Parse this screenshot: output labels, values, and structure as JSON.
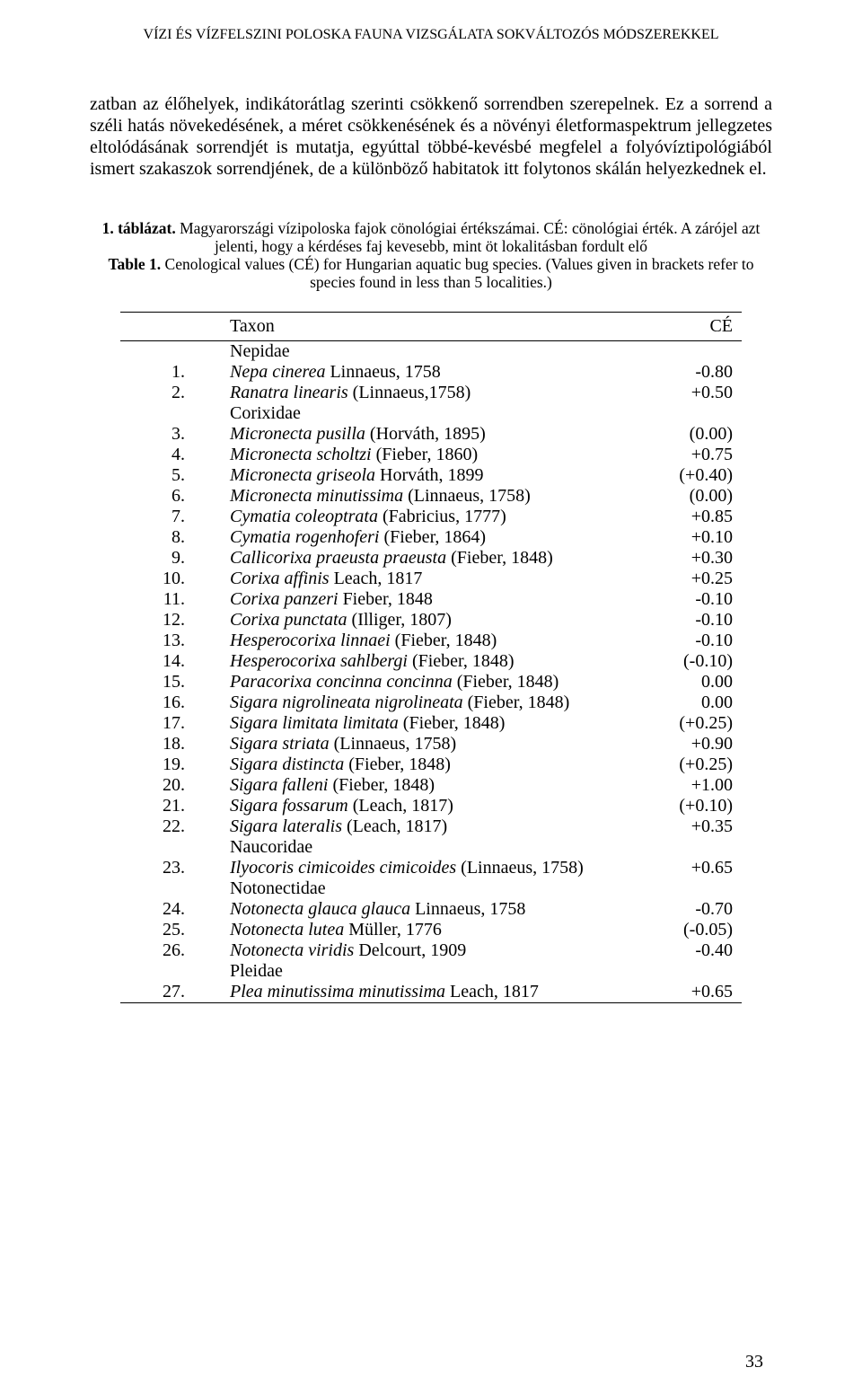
{
  "header": "VÍZI ÉS VÍZFELSZINI POLOSKA FAUNA VIZSGÁLATA SOKVÁLTOZÓS MÓDSZEREKKEL",
  "paragraph": "zatban az élőhelyek, indikátorátlag szerinti csökkenő sorrendben szerepelnek. Ez a sorrend a széli hatás növekedésének, a méret csökkenésének és a növényi életformaspektrum jellegzetes eltolódásának sorrendjét is mutatja, egyúttal többé-kevésbé megfelel a folyóvíztipológiából ismert szakaszok sorrendjének, de a különböző habitatok itt folytonos skálán helyezkednek el.",
  "caption_hu_bold": "1. táblázat.",
  "caption_hu_rest": " Magyarországi vízipoloska fajok cönológiai értékszámai. CÉ: cönológiai érték. A zárójel azt jelenti, hogy a kérdéses faj kevesebb, mint öt lokalitásban fordult elő",
  "caption_en_bold": "Table 1.",
  "caption_en_rest": " Cenological values (CÉ) for Hungarian aquatic bug species. (Values given in brackets refer to species found in less than 5 localities.)",
  "col_taxon": "Taxon",
  "col_ce": "CÉ",
  "rows": [
    {
      "num": "",
      "taxon": "Nepidae",
      "ce": "",
      "family": true
    },
    {
      "num": "1.",
      "taxon_i": "Nepa cinerea",
      "taxon_r": " Linnaeus, 1758",
      "ce": "-0.80"
    },
    {
      "num": "2.",
      "taxon_i": "Ranatra linearis",
      "taxon_r": " (Linnaeus,1758)",
      "ce": "+0.50"
    },
    {
      "num": "",
      "taxon": "Corixidae",
      "ce": "",
      "family": true
    },
    {
      "num": "3.",
      "taxon_i": "Micronecta pusilla",
      "taxon_r": " (Horváth, 1895)",
      "ce": "(0.00)"
    },
    {
      "num": "4.",
      "taxon_i": "Micronecta scholtzi",
      "taxon_r": " (Fieber, 1860)",
      "ce": "+0.75"
    },
    {
      "num": "5.",
      "taxon_i": "Micronecta griseola",
      "taxon_r": " Horváth, 1899",
      "ce": "(+0.40)"
    },
    {
      "num": "6.",
      "taxon_i": "Micronecta minutissima",
      "taxon_r": " (Linnaeus, 1758)",
      "ce": "(0.00)"
    },
    {
      "num": "7.",
      "taxon_i": "Cymatia coleoptrata",
      "taxon_r": " (Fabricius, 1777)",
      "ce": "+0.85"
    },
    {
      "num": "8.",
      "taxon_i": "Cymatia rogenhoferi",
      "taxon_r": " (Fieber, 1864)",
      "ce": "+0.10"
    },
    {
      "num": "9.",
      "taxon_i": "Callicorixa praeusta praeusta",
      "taxon_r": " (Fieber, 1848)",
      "ce": "+0.30"
    },
    {
      "num": "10.",
      "taxon_i": "Corixa affinis",
      "taxon_r": " Leach, 1817",
      "ce": "+0.25"
    },
    {
      "num": "11.",
      "taxon_i": "Corixa panzeri",
      "taxon_r": " Fieber, 1848",
      "ce": "-0.10"
    },
    {
      "num": "12.",
      "taxon_i": "Corixa punctata",
      "taxon_r": " (Illiger, 1807)",
      "ce": "-0.10"
    },
    {
      "num": "13.",
      "taxon_i": "Hesperocorixa linnaei",
      "taxon_r": " (Fieber, 1848)",
      "ce": "-0.10"
    },
    {
      "num": "14.",
      "taxon_i": "Hesperocorixa sahlbergi",
      "taxon_r": " (Fieber, 1848)",
      "ce": "(-0.10)"
    },
    {
      "num": "15.",
      "taxon_i": "Paracorixa concinna concinna",
      "taxon_r": " (Fieber, 1848)",
      "ce": "0.00"
    },
    {
      "num": "16.",
      "taxon_i": "Sigara nigrolineata nigrolineata",
      "taxon_r": " (Fieber, 1848)",
      "ce": "0.00"
    },
    {
      "num": "17.",
      "taxon_i": "Sigara limitata limitata",
      "taxon_r": " (Fieber, 1848)",
      "ce": "(+0.25)"
    },
    {
      "num": "18.",
      "taxon_i": "Sigara striata",
      "taxon_r": " (Linnaeus, 1758)",
      "ce": "+0.90"
    },
    {
      "num": "19.",
      "taxon_i": "Sigara distincta",
      "taxon_r": " (Fieber, 1848)",
      "ce": "(+0.25)"
    },
    {
      "num": "20.",
      "taxon_i": "Sigara falleni",
      "taxon_r": " (Fieber, 1848)",
      "ce": "+1.00"
    },
    {
      "num": "21.",
      "taxon_i": "Sigara fossarum",
      "taxon_r": " (Leach, 1817)",
      "ce": "(+0.10)"
    },
    {
      "num": "22.",
      "taxon_i": "Sigara lateralis",
      "taxon_r": " (Leach, 1817)",
      "ce": "+0.35"
    },
    {
      "num": "",
      "taxon": "Naucoridae",
      "ce": "",
      "family": true
    },
    {
      "num": "23.",
      "taxon_i": "Ilyocoris cimicoides cimicoides",
      "taxon_r": " (Linnaeus, 1758)",
      "ce": "+0.65"
    },
    {
      "num": "",
      "taxon": "Notonectidae",
      "ce": "",
      "family": true
    },
    {
      "num": "24.",
      "taxon_i": "Notonecta glauca glauca",
      "taxon_r": " Linnaeus, 1758",
      "ce": "-0.70"
    },
    {
      "num": "25.",
      "taxon_i": "Notonecta lutea",
      "taxon_r": " Müller, 1776",
      "ce": "(-0.05)"
    },
    {
      "num": "26.",
      "taxon_i": "Notonecta viridis",
      "taxon_r": " Delcourt, 1909",
      "ce": "-0.40"
    },
    {
      "num": "",
      "taxon": "Pleidae",
      "ce": "",
      "family": true
    },
    {
      "num": "27.",
      "taxon_i": "Plea minutissima minutissima",
      "taxon_r": " Leach, 1817",
      "ce": "+0.65"
    }
  ],
  "page_number": "33"
}
